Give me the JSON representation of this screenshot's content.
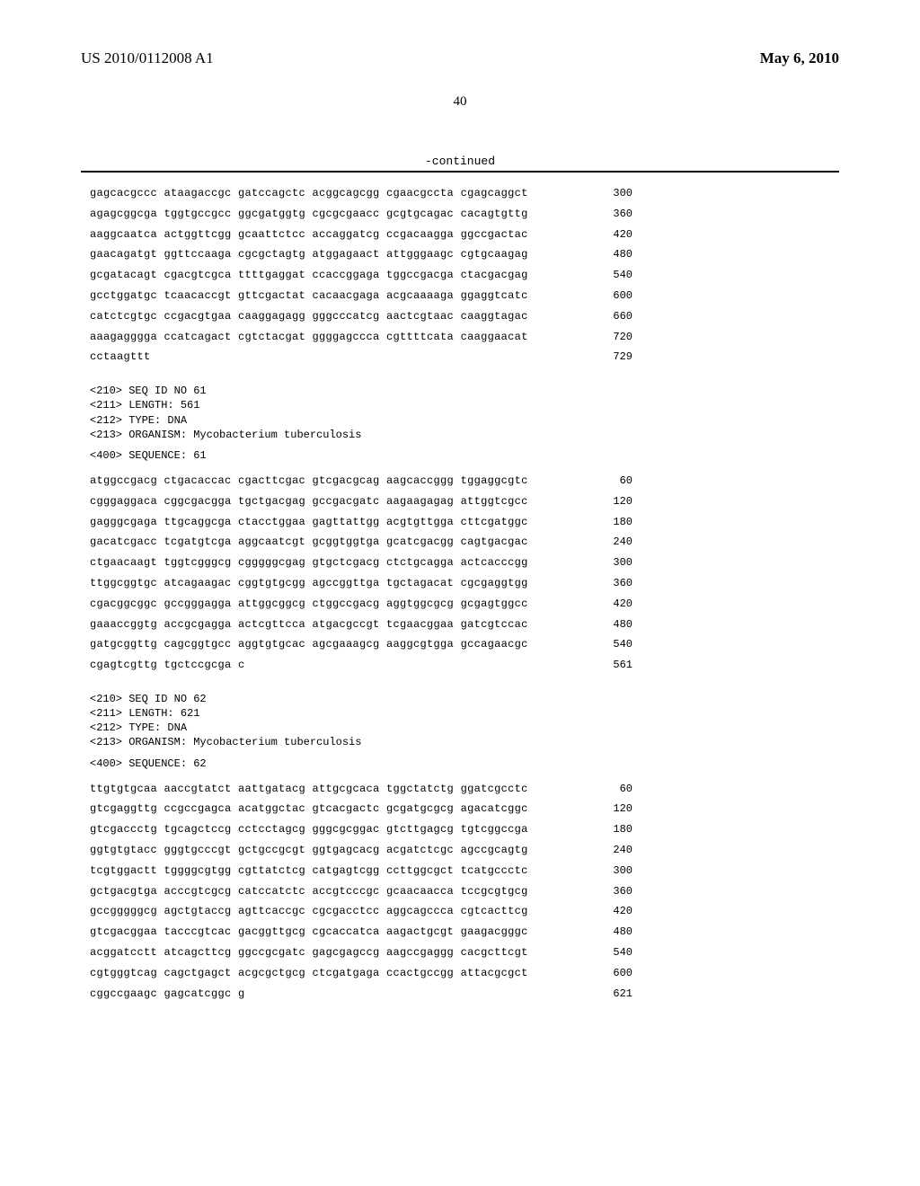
{
  "header": {
    "patent_number": "US 2010/0112008 A1",
    "date": "May 6, 2010"
  },
  "page_number": "40",
  "continued_label": "-continued",
  "blocks": [
    {
      "type": "sequence",
      "lines": [
        {
          "seq": "gagcacgccc ataagaccgc gatccagctc acggcagcgg cgaacgccta cgagcaggct",
          "pos": "300"
        },
        {
          "seq": "agagcggcga tggtgccgcc ggcgatggtg cgcgcgaacc gcgtgcagac cacagtgttg",
          "pos": "360"
        },
        {
          "seq": "aaggcaatca actggttcgg gcaattctcc accaggatcg ccgacaagga ggccgactac",
          "pos": "420"
        },
        {
          "seq": "gaacagatgt ggttccaaga cgcgctagtg atggagaact attgggaagc cgtgcaagag",
          "pos": "480"
        },
        {
          "seq": "gcgatacagt cgacgtcgca ttttgaggat ccaccggaga tggccgacga ctacgacgag",
          "pos": "540"
        },
        {
          "seq": "gcctggatgc tcaacaccgt gttcgactat cacaacgaga acgcaaaaga ggaggtcatc",
          "pos": "600"
        },
        {
          "seq": "catctcgtgc ccgacgtgaa caaggagagg gggcccatcg aactcgtaac caaggtagac",
          "pos": "660"
        },
        {
          "seq": "aaagagggga ccatcagact cgtctacgat ggggagccca cgttttcata caaggaacat",
          "pos": "720"
        },
        {
          "seq": "cctaagttt",
          "pos": "729"
        }
      ]
    },
    {
      "type": "meta",
      "lines": [
        "<210> SEQ ID NO 61",
        "<211> LENGTH: 561",
        "<212> TYPE: DNA",
        "<213> ORGANISM: Mycobacterium tuberculosis"
      ]
    },
    {
      "type": "label",
      "text": "<400> SEQUENCE: 61"
    },
    {
      "type": "sequence",
      "lines": [
        {
          "seq": "atggccgacg ctgacaccac cgacttcgac gtcgacgcag aagcaccggg tggaggcgtc",
          "pos": "60"
        },
        {
          "seq": "cgggaggaca cggcgacgga tgctgacgag gccgacgatc aagaagagag attggtcgcc",
          "pos": "120"
        },
        {
          "seq": "gagggcgaga ttgcaggcga ctacctggaa gagttattgg acgtgttgga cttcgatggc",
          "pos": "180"
        },
        {
          "seq": "gacatcgacc tcgatgtcga aggcaatcgt gcggtggtga gcatcgacgg cagtgacgac",
          "pos": "240"
        },
        {
          "seq": "ctgaacaagt tggtcgggcg cgggggcgag gtgctcgacg ctctgcagga actcacccgg",
          "pos": "300"
        },
        {
          "seq": "ttggcggtgc atcagaagac cggtgtgcgg agccggttga tgctagacat cgcgaggtgg",
          "pos": "360"
        },
        {
          "seq": "cgacggcggc gccgggagga attggcggcg ctggccgacg aggtggcgcg gcgagtggcc",
          "pos": "420"
        },
        {
          "seq": "gaaaccggtg accgcgagga actcgttcca atgacgccgt tcgaacggaa gatcgtccac",
          "pos": "480"
        },
        {
          "seq": "gatgcggttg cagcggtgcc aggtgtgcac agcgaaagcg aaggcgtgga gccagaacgc",
          "pos": "540"
        },
        {
          "seq": "cgagtcgttg tgctccgcga c",
          "pos": "561"
        }
      ]
    },
    {
      "type": "meta",
      "lines": [
        "<210> SEQ ID NO 62",
        "<211> LENGTH: 621",
        "<212> TYPE: DNA",
        "<213> ORGANISM: Mycobacterium tuberculosis"
      ]
    },
    {
      "type": "label",
      "text": "<400> SEQUENCE: 62"
    },
    {
      "type": "sequence",
      "lines": [
        {
          "seq": "ttgtgtgcaa aaccgtatct aattgatacg attgcgcaca tggctatctg ggatcgcctc",
          "pos": "60"
        },
        {
          "seq": "gtcgaggttg ccgccgagca acatggctac gtcacgactc gcgatgcgcg agacatcggc",
          "pos": "120"
        },
        {
          "seq": "gtcgaccctg tgcagctccg cctcctagcg gggcgcggac gtcttgagcg tgtcggccga",
          "pos": "180"
        },
        {
          "seq": "ggtgtgtacc gggtgcccgt gctgccgcgt ggtgagcacg acgatctcgc agccgcagtg",
          "pos": "240"
        },
        {
          "seq": "tcgtggactt tggggcgtgg cgttatctcg catgagtcgg ccttggcgct tcatgccctc",
          "pos": "300"
        },
        {
          "seq": "gctgacgtga acccgtcgcg catccatctc accgtcccgc gcaacaacca tccgcgtgcg",
          "pos": "360"
        },
        {
          "seq": "gccgggggcg agctgtaccg agttcaccgc cgcgacctcc aggcagccca cgtcacttcg",
          "pos": "420"
        },
        {
          "seq": "gtcgacggaa tacccgtcac gacggttgcg cgcaccatca aagactgcgt gaagacgggc",
          "pos": "480"
        },
        {
          "seq": "acggatcctt atcagcttcg ggccgcgatc gagcgagccg aagccgaggg cacgcttcgt",
          "pos": "540"
        },
        {
          "seq": "cgtgggtcag cagctgagct acgcgctgcg ctcgatgaga ccactgccgg attacgcgct",
          "pos": "600"
        },
        {
          "seq": "cggccgaagc gagcatcggc g",
          "pos": "621"
        }
      ]
    }
  ]
}
